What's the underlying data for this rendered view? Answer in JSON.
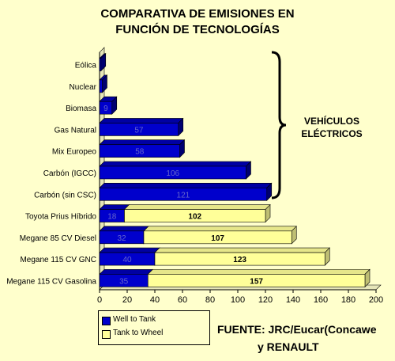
{
  "title_line1": "COMPARATIVA DE EMISIONES EN",
  "title_line2": "FUNCIÓN DE TECNOLOGÍAS",
  "annotation_line1": "VEHÍCULOS",
  "annotation_line2": "ELÉCTRICOS",
  "source_line1": "FUENTE: JRC/Eucar(Concawe",
  "source_line2": "y RENAULT",
  "colors": {
    "background": "#FFFFCC",
    "well_to_tank": "#0000CC",
    "tank_to_wheel": "#FFFF99"
  },
  "chart_data": {
    "type": "bar",
    "orientation": "horizontal",
    "stacked": true,
    "categories": [
      "Eólica",
      "Nuclear",
      "Biomasa",
      "Gas Natural",
      "Mix Europeo",
      "Carbón (IGCC)",
      "Carbón (sin CSC)",
      "Toyota Prius Híbrido",
      "Megane 85 CV Diesel",
      "Megane 115 CV GNC",
      "Megane 115 CV Gasolina"
    ],
    "series": [
      {
        "name": "Well to Tank",
        "values": [
          1,
          2,
          9,
          57,
          58,
          106,
          121,
          18,
          32,
          40,
          35
        ],
        "labels": [
          "",
          "",
          "9",
          "57",
          "58",
          "106",
          "121",
          "18",
          "32",
          "40",
          "35"
        ]
      },
      {
        "name": "Tank to Wheel",
        "values": [
          0,
          0,
          0,
          0,
          0,
          0,
          0,
          102,
          107,
          123,
          157
        ],
        "labels": [
          "",
          "",
          "",
          "",
          "",
          "",
          "",
          "102",
          "107",
          "123",
          "157"
        ]
      }
    ],
    "xlim": [
      0,
      200
    ],
    "xticks": [
      "0",
      "20",
      "40",
      "60",
      "80",
      "100",
      "120",
      "140",
      "160",
      "180",
      "200"
    ],
    "legend_position": "bottom-left",
    "grid": false
  }
}
